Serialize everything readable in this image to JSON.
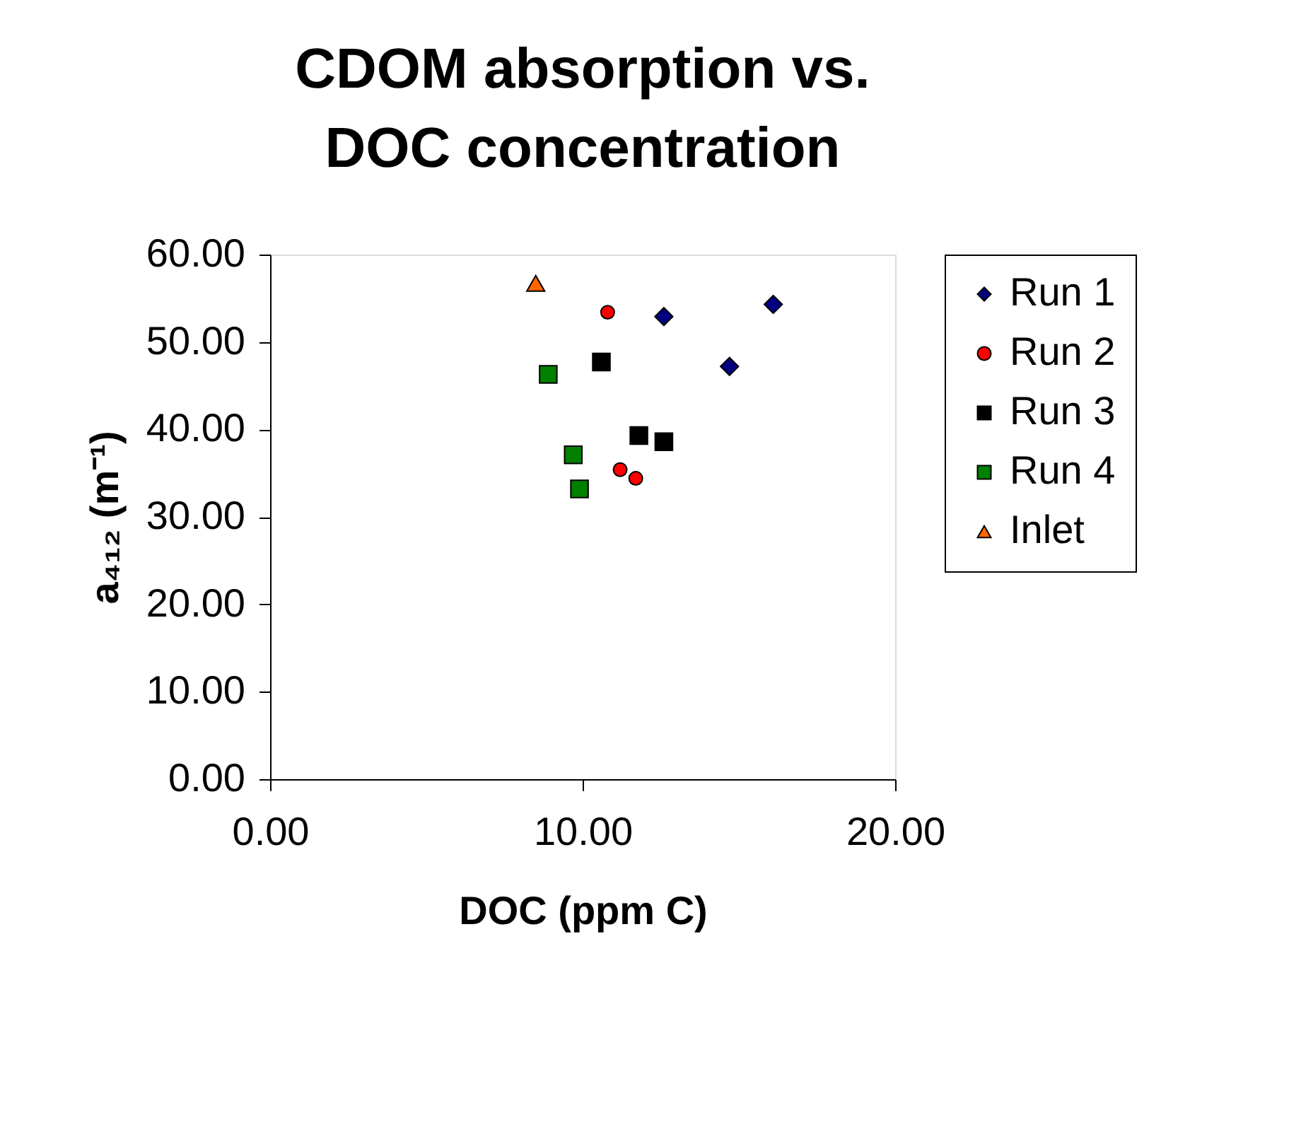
{
  "chart_data": {
    "type": "scatter",
    "title": "CDOM absorption vs.\nDOC concentration",
    "xlabel": "DOC (ppm C)",
    "ylabel": "a₄₁₂ (m⁻¹)",
    "xlim": [
      0,
      20
    ],
    "xticks": [
      {
        "value": 0,
        "label": "0.00"
      },
      {
        "value": 10,
        "label": "10.00"
      },
      {
        "value": 20,
        "label": "20.00"
      }
    ],
    "ylim": [
      0,
      60
    ],
    "yticks": [
      {
        "value": 0,
        "label": "0.00"
      },
      {
        "value": 10,
        "label": "10.00"
      },
      {
        "value": 20,
        "label": "20.00"
      },
      {
        "value": 30,
        "label": "30.00"
      },
      {
        "value": 40,
        "label": "40.00"
      },
      {
        "value": 50,
        "label": "50.00"
      },
      {
        "value": 60,
        "label": "60.00"
      }
    ],
    "grid": false,
    "legend": "right",
    "series": [
      {
        "name": "Run 1",
        "color": "#000080",
        "marker": "diamond",
        "x": [
          12.6,
          16.1,
          14.7
        ],
        "values": [
          52.9,
          54.3,
          47.2
        ]
      },
      {
        "name": "Run 2",
        "color": "#ff0000",
        "marker": "circle",
        "x": [
          10.8,
          11.2,
          11.7
        ],
        "values": [
          53.4,
          35.4,
          34.4
        ]
      },
      {
        "name": "Run 3",
        "color": "#000000",
        "marker": "square",
        "x": [
          10.6,
          11.8,
          12.6
        ],
        "values": [
          47.7,
          39.3,
          38.6
        ]
      },
      {
        "name": "Run 4",
        "color": "#008000",
        "marker": "square",
        "x": [
          8.9,
          9.7,
          9.9
        ],
        "values": [
          46.3,
          37.1,
          33.2
        ]
      },
      {
        "name": "Inlet",
        "color": "#ff6600",
        "marker": "triangle",
        "x": [
          8.5
        ],
        "values": [
          56.7
        ]
      }
    ]
  }
}
